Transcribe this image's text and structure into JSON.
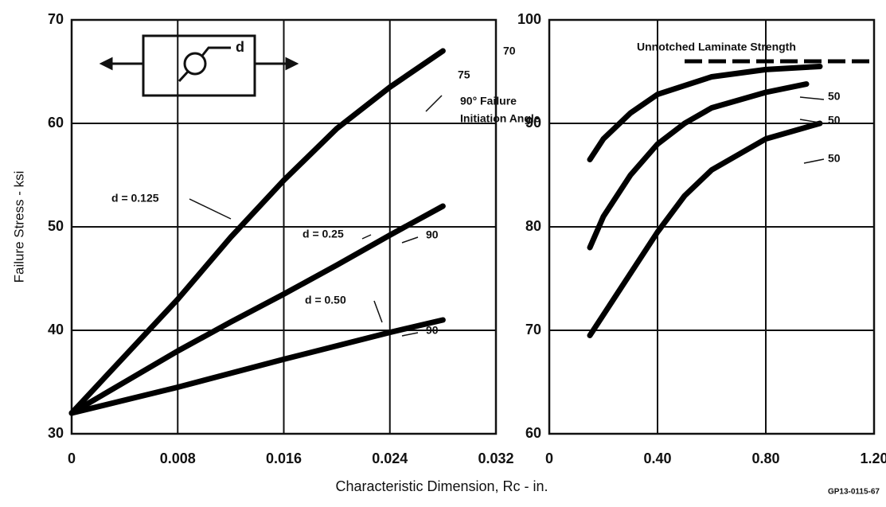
{
  "y_label": "Failure Stress - ksi",
  "x_label": "Characteristic Dimension, Rc - in.",
  "code": "GP13-0115-67",
  "inset_label": "d",
  "chart_data": [
    {
      "type": "line",
      "xlim": [
        0,
        0.032
      ],
      "xticks": [
        0,
        0.008,
        0.016,
        0.024,
        0.032
      ],
      "ylim": [
        30,
        70
      ],
      "yticks": [
        30,
        40,
        50,
        60,
        70
      ],
      "grid": true,
      "color": "#000000",
      "series": [
        {
          "name": "d = 0.125",
          "x": [
            0,
            0.004,
            0.008,
            0.012,
            0.016,
            0.02,
            0.024,
            0.028
          ],
          "values": [
            32,
            37.5,
            43,
            49,
            54.5,
            59.5,
            63.5,
            67
          ]
        },
        {
          "name": "d = 0.25",
          "x": [
            0,
            0.004,
            0.008,
            0.012,
            0.016,
            0.02,
            0.024,
            0.028
          ],
          "values": [
            32,
            35,
            38,
            40.8,
            43.5,
            46.3,
            49.2,
            52
          ]
        },
        {
          "name": "d = 0.50",
          "x": [
            0,
            0.008,
            0.016,
            0.024,
            0.028
          ],
          "values": [
            32,
            34.5,
            37.2,
            39.8,
            41
          ]
        }
      ],
      "annotations": [
        "70",
        "75",
        "90° Failure",
        "Initiation Angle",
        "90",
        "90"
      ]
    },
    {
      "type": "line",
      "xlim": [
        0,
        1.2
      ],
      "xticks": [
        0,
        {
          "value": 0.4,
          "label": "0.40"
        },
        {
          "value": 0.8,
          "label": "0.80"
        },
        {
          "value": 1.2,
          "label": "1.20"
        }
      ],
      "ylim": [
        60,
        100
      ],
      "yticks": [
        60,
        70,
        80,
        90,
        100
      ],
      "grid": true,
      "color": "#000000",
      "series": [
        {
          "x": [
            0.15,
            0.2,
            0.3,
            0.4,
            0.6,
            0.8,
            1.0
          ],
          "values": [
            86.5,
            88.5,
            91,
            92.8,
            94.5,
            95.2,
            95.5
          ]
        },
        {
          "x": [
            0.15,
            0.2,
            0.3,
            0.4,
            0.5,
            0.6,
            0.8,
            0.95
          ],
          "values": [
            78,
            81,
            85,
            88,
            90,
            91.5,
            93,
            93.8
          ]
        },
        {
          "x": [
            0.15,
            0.3,
            0.4,
            0.5,
            0.6,
            0.8,
            1.0
          ],
          "values": [
            69.5,
            75.5,
            79.5,
            83,
            85.5,
            88.5,
            90
          ]
        },
        {
          "name": "Unnotched Laminate Strength",
          "style": "dashed",
          "x": [
            0.5,
            1.2
          ],
          "values": [
            96,
            96
          ]
        }
      ],
      "annotations": [
        "50",
        "50",
        "50"
      ]
    }
  ]
}
